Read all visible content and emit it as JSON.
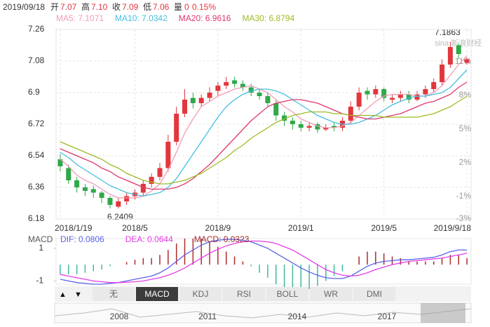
{
  "header": {
    "date": "2019/09/18",
    "open_label": "开",
    "open": "7.07",
    "high_label": "高",
    "high": "7.10",
    "close_label": "收",
    "close": "7.09",
    "low_label": "低",
    "low": "7.06",
    "volume_label": "量",
    "volume": "0",
    "change": "0.15%"
  },
  "watermark": "sina 新浪财经",
  "tabs": [
    "无",
    "MACD",
    "KDJ",
    "RSI",
    "BOLL",
    "WR",
    "DMI"
  ],
  "navigator": {
    "years": [
      "2008",
      "2011",
      "2014",
      "2017"
    ]
  },
  "chart_data": [
    {
      "type": "candlestick",
      "categories": [
        "2018/1/19",
        null,
        null,
        null,
        null,
        null,
        null,
        null,
        null,
        "2018/5",
        null,
        null,
        null,
        null,
        null,
        null,
        null,
        null,
        null,
        "2018/9",
        null,
        null,
        null,
        null,
        null,
        null,
        null,
        null,
        null,
        "2019/1",
        null,
        null,
        null,
        null,
        null,
        null,
        null,
        null,
        null,
        "2019/5",
        null,
        null,
        null,
        null,
        null,
        null,
        null,
        null,
        null,
        "2019/9/18"
      ],
      "open": [
        6.52,
        6.47,
        6.4,
        6.36,
        6.35,
        6.33,
        6.3,
        6.25,
        6.28,
        6.31,
        6.33,
        6.38,
        6.42,
        6.47,
        6.62,
        6.78,
        6.87,
        6.84,
        6.87,
        6.91,
        6.94,
        6.97,
        6.95,
        6.93,
        6.9,
        6.88,
        6.84,
        6.77,
        6.74,
        6.72,
        6.7,
        6.72,
        6.69,
        6.71,
        6.7,
        6.74,
        6.82,
        6.91,
        6.89,
        6.92,
        6.86,
        6.87,
        6.89,
        6.86,
        6.89,
        6.92,
        6.96,
        7.06,
        7.17,
        7.07
      ],
      "high": [
        6.55,
        6.49,
        6.42,
        6.38,
        6.37,
        6.34,
        6.31,
        6.3,
        6.33,
        6.35,
        6.4,
        6.44,
        6.5,
        6.66,
        6.82,
        6.92,
        6.9,
        6.89,
        6.93,
        6.96,
        6.99,
        6.99,
        6.97,
        6.95,
        6.92,
        6.9,
        6.86,
        6.79,
        6.76,
        6.74,
        6.73,
        6.73,
        6.72,
        6.73,
        6.76,
        6.85,
        6.93,
        6.93,
        6.94,
        6.93,
        6.89,
        6.91,
        6.91,
        6.91,
        6.94,
        6.98,
        7.09,
        7.19,
        7.18,
        7.1
      ],
      "low": [
        6.45,
        6.38,
        6.33,
        6.31,
        6.3,
        6.27,
        6.24,
        6.24,
        6.26,
        6.29,
        6.31,
        6.36,
        6.4,
        6.45,
        6.6,
        6.76,
        6.81,
        6.82,
        6.85,
        6.88,
        6.92,
        6.93,
        6.91,
        6.88,
        6.86,
        6.82,
        6.74,
        6.71,
        6.69,
        6.68,
        6.68,
        6.67,
        6.68,
        6.68,
        6.68,
        6.72,
        6.8,
        6.86,
        6.87,
        6.85,
        6.84,
        6.85,
        6.84,
        6.85,
        6.87,
        6.9,
        6.94,
        7.04,
        7.09,
        7.06
      ],
      "close": [
        6.48,
        6.4,
        6.36,
        6.34,
        6.33,
        6.3,
        6.26,
        6.28,
        6.31,
        6.33,
        6.38,
        6.42,
        6.47,
        6.62,
        6.78,
        6.86,
        6.84,
        6.87,
        6.9,
        6.94,
        6.96,
        6.95,
        6.93,
        6.9,
        6.88,
        6.84,
        6.77,
        6.74,
        6.72,
        6.7,
        6.71,
        6.69,
        6.7,
        6.7,
        6.74,
        6.82,
        6.9,
        6.89,
        6.92,
        6.87,
        6.87,
        6.89,
        6.86,
        6.89,
        6.92,
        6.96,
        7.06,
        7.16,
        7.12,
        7.09
      ],
      "up_color": "#e2363c",
      "down_color": "#2fa84a",
      "series": [
        {
          "name": "MA5: 7.1071",
          "color": "#f39bb6",
          "values": [
            6.52,
            6.48,
            6.43,
            6.4,
            6.38,
            6.35,
            6.32,
            6.3,
            6.3,
            6.3,
            6.31,
            6.34,
            6.38,
            6.46,
            6.56,
            6.67,
            6.75,
            6.82,
            6.85,
            6.88,
            6.9,
            6.92,
            6.93,
            6.94,
            6.92,
            6.9,
            6.86,
            6.82,
            6.79,
            6.75,
            6.73,
            6.71,
            6.7,
            6.7,
            6.71,
            6.73,
            6.77,
            6.81,
            6.85,
            6.88,
            6.89,
            6.89,
            6.89,
            6.88,
            6.88,
            6.9,
            6.94,
            7.0,
            7.06,
            7.11
          ]
        },
        {
          "name": "MA10: 7.0342",
          "color": "#45bfe0",
          "values": [
            6.56,
            6.53,
            6.49,
            6.46,
            6.43,
            6.4,
            6.37,
            6.35,
            6.33,
            6.32,
            6.31,
            6.32,
            6.33,
            6.36,
            6.41,
            6.48,
            6.55,
            6.62,
            6.69,
            6.76,
            6.82,
            6.86,
            6.89,
            6.91,
            6.92,
            6.92,
            6.91,
            6.89,
            6.86,
            6.83,
            6.8,
            6.77,
            6.75,
            6.73,
            6.72,
            6.72,
            6.73,
            6.75,
            6.77,
            6.8,
            6.83,
            6.85,
            6.87,
            6.88,
            6.88,
            6.89,
            6.9,
            6.93,
            6.98,
            7.03
          ]
        },
        {
          "name": "MA20: 6.9616",
          "color": "#e0386c",
          "values": [
            6.58,
            6.56,
            6.54,
            6.52,
            6.5,
            6.47,
            6.45,
            6.42,
            6.4,
            6.38,
            6.36,
            6.35,
            6.35,
            6.35,
            6.36,
            6.38,
            6.41,
            6.45,
            6.49,
            6.54,
            6.59,
            6.64,
            6.69,
            6.74,
            6.78,
            6.82,
            6.84,
            6.85,
            6.86,
            6.86,
            6.85,
            6.84,
            6.82,
            6.8,
            6.78,
            6.77,
            6.76,
            6.75,
            6.75,
            6.76,
            6.77,
            6.78,
            6.8,
            6.82,
            6.84,
            6.85,
            6.87,
            6.89,
            6.93,
            6.96
          ]
        },
        {
          "name": "MA30: 6.8794",
          "color": "#9cbb25",
          "values": [
            6.62,
            6.6,
            6.58,
            6.56,
            6.54,
            6.52,
            6.49,
            6.47,
            6.44,
            6.42,
            6.4,
            6.39,
            6.38,
            6.38,
            6.39,
            6.4,
            6.42,
            6.44,
            6.47,
            6.5,
            6.53,
            6.57,
            6.6,
            6.64,
            6.67,
            6.7,
            6.73,
            6.75,
            6.77,
            6.78,
            6.79,
            6.79,
            6.79,
            6.78,
            6.78,
            6.77,
            6.77,
            6.77,
            6.77,
            6.76,
            6.76,
            6.76,
            6.76,
            6.76,
            6.77,
            6.78,
            6.8,
            6.82,
            6.85,
            6.88
          ]
        }
      ],
      "ylim": [
        6.18,
        7.26
      ],
      "yticks": [
        6.18,
        6.36,
        6.54,
        6.72,
        6.9,
        7.08,
        7.26
      ],
      "y2lim": [
        -3,
        13.875
      ],
      "y2ticks": [
        {
          "value": -3,
          "label": "-3%"
        },
        {
          "value": -1,
          "label": "-1%"
        },
        {
          "value": 2,
          "label": "2%"
        },
        {
          "value": 5,
          "label": "5%"
        },
        {
          "value": 8,
          "label": "8%"
        },
        {
          "value": 11,
          "label": "11%"
        }
      ],
      "grid": true,
      "annotations": [
        "7.1863",
        "6.2409"
      ]
    },
    {
      "type": "macd",
      "title": "MACD",
      "series": [
        {
          "name": "DIF: 0.0806",
          "color": "#5a63e6",
          "values": [
            -0.9,
            -1.0,
            -1.1,
            -1.15,
            -1.2,
            -1.2,
            -1.15,
            -1.1,
            -1.0,
            -0.9,
            -0.8,
            -0.7,
            -0.5,
            -0.2,
            0.2,
            0.6,
            0.9,
            1.2,
            1.4,
            1.5,
            1.55,
            1.55,
            1.5,
            1.4,
            1.2,
            1.0,
            0.7,
            0.4,
            0.1,
            -0.2,
            -0.45,
            -0.65,
            -0.8,
            -0.85,
            -0.85,
            -0.7,
            -0.4,
            -0.1,
            0.1,
            0.2,
            0.25,
            0.3,
            0.3,
            0.35,
            0.4,
            0.45,
            0.6,
            0.8,
            0.9,
            0.9
          ]
        },
        {
          "name": "DEA: 0.0644",
          "color": "#e23ce6",
          "values": [
            -0.6,
            -0.7,
            -0.8,
            -0.9,
            -1.0,
            -1.05,
            -1.1,
            -1.1,
            -1.08,
            -1.05,
            -1.0,
            -0.9,
            -0.8,
            -0.65,
            -0.45,
            -0.2,
            0.1,
            0.4,
            0.7,
            0.95,
            1.15,
            1.3,
            1.4,
            1.45,
            1.45,
            1.4,
            1.3,
            1.1,
            0.9,
            0.6,
            0.3,
            0.0,
            -0.3,
            -0.5,
            -0.65,
            -0.7,
            -0.65,
            -0.5,
            -0.3,
            -0.15,
            0.0,
            0.1,
            0.2,
            0.25,
            0.3,
            0.35,
            0.4,
            0.5,
            0.6,
            0.7
          ]
        }
      ],
      "histogram": {
        "name": "MACD: 0.0323",
        "color": "#a0282c",
        "up_color": "#b02a2a",
        "down_color": "#3fb9a2",
        "values": [
          -0.6,
          -0.6,
          -0.6,
          -0.5,
          -0.4,
          -0.3,
          -0.1,
          0.0,
          0.16,
          0.3,
          0.4,
          0.4,
          0.6,
          0.9,
          1.3,
          1.6,
          1.6,
          1.6,
          1.4,
          1.1,
          0.8,
          0.5,
          0.2,
          -0.1,
          -0.5,
          -0.8,
          -1.2,
          -1.4,
          -1.6,
          -1.6,
          -1.5,
          -1.3,
          -1.0,
          -0.7,
          -0.4,
          0.0,
          0.5,
          0.8,
          0.8,
          0.7,
          0.5,
          0.4,
          0.2,
          0.2,
          0.2,
          0.2,
          0.4,
          0.6,
          0.6,
          0.4
        ]
      },
      "ylim": [
        -1.2,
        1.6
      ],
      "yticks": [
        1,
        -1
      ]
    }
  ]
}
